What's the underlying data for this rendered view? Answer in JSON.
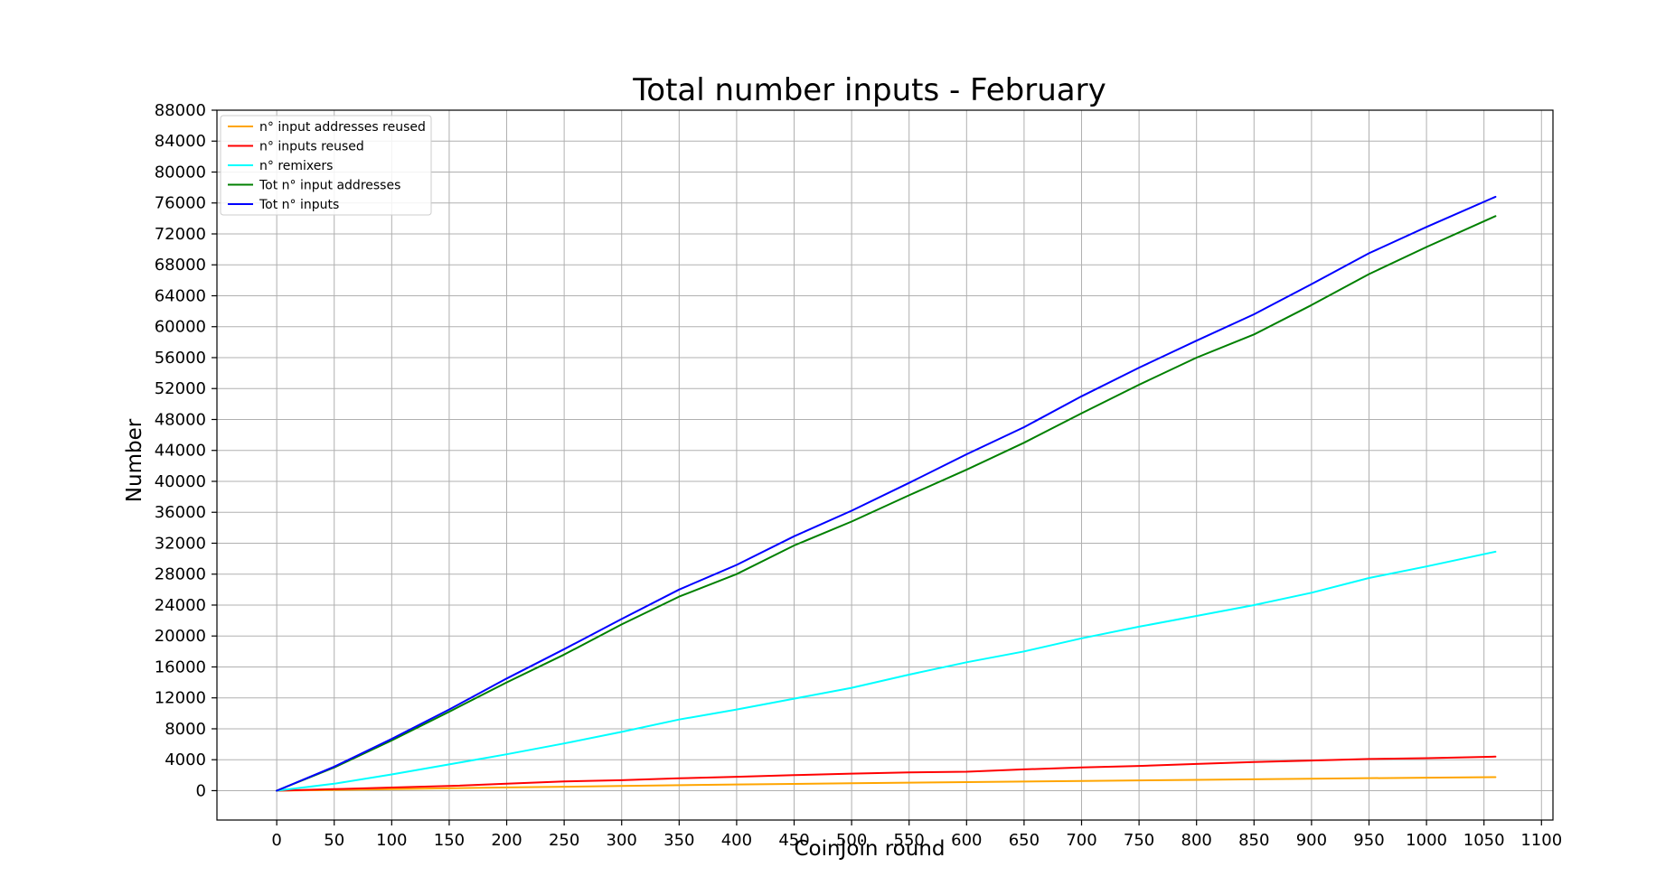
{
  "chart_data": {
    "type": "line",
    "title": "Total number inputs - February",
    "xlabel": "CoinJoin round",
    "ylabel": "Number",
    "xlim": [
      -52,
      1110
    ],
    "ylim": [
      -3800,
      88000
    ],
    "xticks": [
      0,
      50,
      100,
      150,
      200,
      250,
      300,
      350,
      400,
      450,
      500,
      550,
      600,
      650,
      700,
      750,
      800,
      850,
      900,
      950,
      1000,
      1050,
      1100
    ],
    "yticks": [
      0,
      4000,
      8000,
      12000,
      16000,
      20000,
      24000,
      28000,
      32000,
      36000,
      40000,
      44000,
      48000,
      52000,
      56000,
      60000,
      64000,
      68000,
      72000,
      76000,
      80000,
      84000,
      88000
    ],
    "grid": true,
    "legend_position": "top-left",
    "series": [
      {
        "name": "n° input addresses reused",
        "color": "#FFA500",
        "x": [
          0,
          100,
          200,
          300,
          400,
          500,
          600,
          700,
          800,
          900,
          1000,
          1060
        ],
        "y": [
          0,
          200,
          420,
          600,
          800,
          950,
          1100,
          1250,
          1400,
          1550,
          1680,
          1750
        ]
      },
      {
        "name": "n° inputs reused",
        "color": "#FF0000",
        "x": [
          0,
          50,
          100,
          150,
          200,
          250,
          300,
          350,
          400,
          450,
          500,
          550,
          600,
          650,
          700,
          750,
          800,
          850,
          900,
          950,
          1000,
          1060
        ],
        "y": [
          0,
          200,
          400,
          600,
          900,
          1200,
          1350,
          1600,
          1800,
          2000,
          2200,
          2350,
          2450,
          2750,
          3000,
          3200,
          3450,
          3700,
          3900,
          4100,
          4200,
          4400
        ]
      },
      {
        "name": "n° remixers",
        "color": "#00FFFF",
        "x": [
          0,
          50,
          100,
          150,
          200,
          250,
          300,
          350,
          400,
          450,
          500,
          550,
          600,
          650,
          700,
          750,
          800,
          850,
          900,
          950,
          1000,
          1060
        ],
        "y": [
          0,
          900,
          2100,
          3400,
          4700,
          6100,
          7600,
          9200,
          10500,
          11900,
          13300,
          15000,
          16600,
          18000,
          19700,
          21200,
          22600,
          24000,
          25600,
          27500,
          29000,
          30900
        ]
      },
      {
        "name": "Tot n° input addresses",
        "color": "#008000",
        "x": [
          0,
          50,
          100,
          150,
          200,
          250,
          300,
          350,
          400,
          450,
          500,
          550,
          600,
          650,
          700,
          750,
          800,
          850,
          900,
          950,
          1000,
          1060
        ],
        "y": [
          0,
          3000,
          6500,
          10200,
          14000,
          17600,
          21500,
          25100,
          28000,
          31700,
          34800,
          38200,
          41500,
          45000,
          48800,
          52500,
          56000,
          59000,
          62800,
          66800,
          70300,
          74300
        ]
      },
      {
        "name": "Tot n° inputs",
        "color": "#0000FF",
        "x": [
          0,
          50,
          100,
          150,
          200,
          250,
          300,
          350,
          400,
          450,
          500,
          550,
          600,
          650,
          700,
          750,
          800,
          850,
          900,
          950,
          1000,
          1060
        ],
        "y": [
          0,
          3100,
          6700,
          10500,
          14500,
          18300,
          22200,
          26000,
          29200,
          32900,
          36200,
          39800,
          43500,
          47000,
          51000,
          54700,
          58200,
          61600,
          65500,
          69500,
          72900,
          76800
        ]
      }
    ]
  }
}
